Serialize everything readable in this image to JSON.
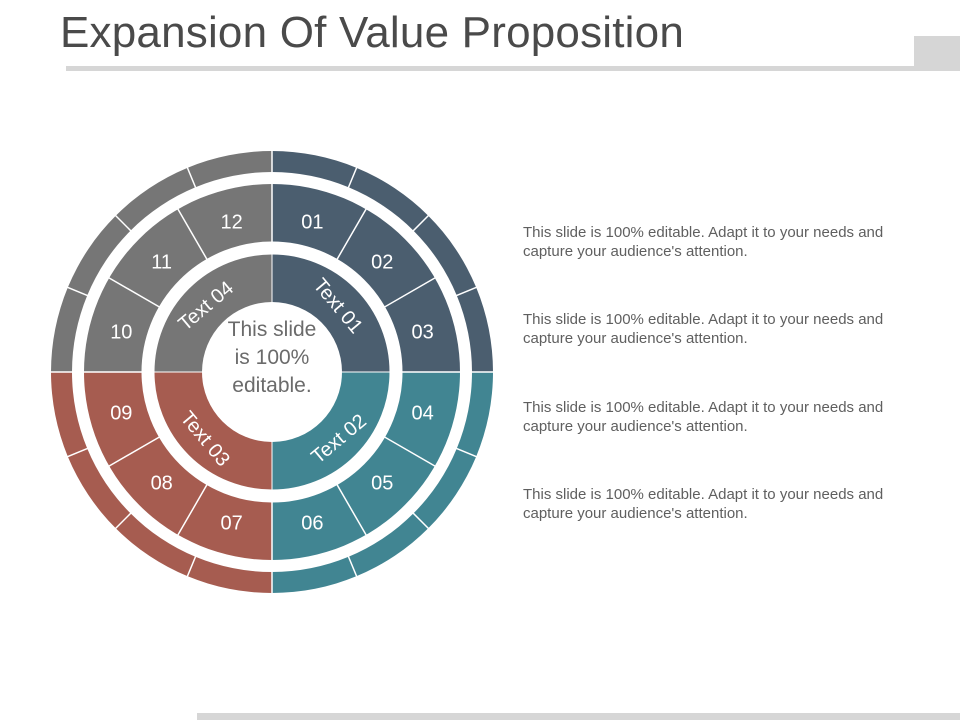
{
  "slide": {
    "title": "Expansion Of Value Proposition"
  },
  "diagram": {
    "center_lines": [
      "This slide",
      "is 100%",
      "editable."
    ],
    "quadrants": [
      {
        "label": "Text 01",
        "color": "#4b5e6f",
        "numbers": [
          "01",
          "02",
          "03"
        ]
      },
      {
        "label": "Text 02",
        "color": "#418592",
        "numbers": [
          "04",
          "05",
          "06"
        ]
      },
      {
        "label": "Text 03",
        "color": "#a65c50",
        "numbers": [
          "07",
          "08",
          "09"
        ]
      },
      {
        "label": "Text 04",
        "color": "#767676",
        "numbers": [
          "10",
          "11",
          "12"
        ]
      }
    ]
  },
  "descriptions": [
    "This slide is 100% editable. Adapt it to your needs and capture your audience's attention.",
    "This slide is 100% editable. Adapt it to your needs and capture your audience's attention.",
    "This slide is 100% editable. Adapt it to your needs and capture your audience's attention.",
    "This slide is 100% editable. Adapt it to your needs and capture your audience's attention."
  ]
}
